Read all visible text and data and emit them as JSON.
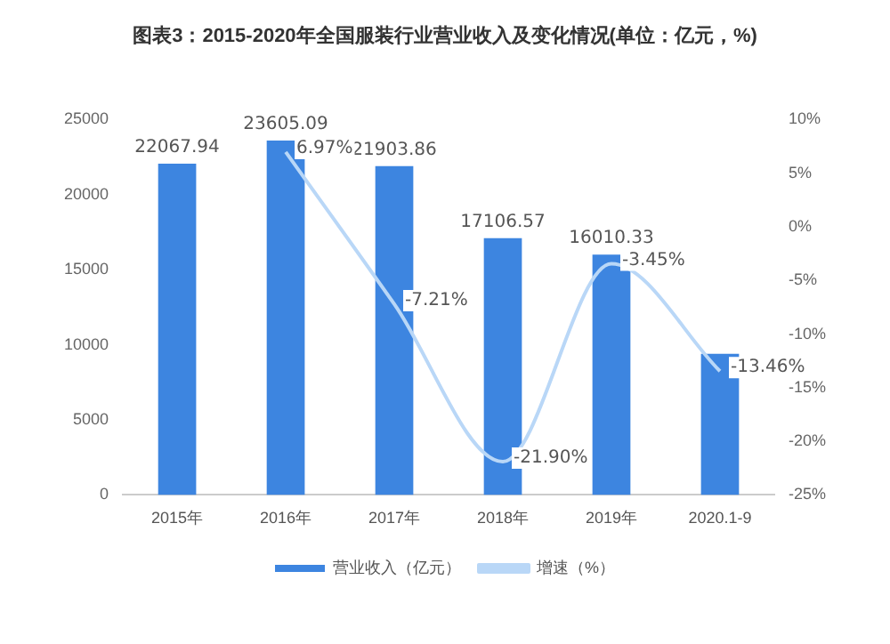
{
  "chart_data": {
    "type": "bar",
    "title": "图表3：2015-2020年全国服装行业营业收入及变化情况(单位：亿元，%)",
    "categories": [
      "2015年",
      "2016年",
      "2017年",
      "2018年",
      "2019年",
      "2020.1-9"
    ],
    "series": [
      {
        "name": "营业收入（亿元）",
        "color": "#3d85e0",
        "values": [
          22067.94,
          23605.09,
          21903.86,
          17106.57,
          16010.33,
          9400
        ],
        "value_labels": [
          "22067.94",
          "23605.09",
          "21903.86",
          "17106.57",
          "16010.33",
          null
        ]
      },
      {
        "name": "增速（%）",
        "type": "line",
        "axis": "y2",
        "color": "#b9d7f7",
        "values": [
          null,
          6.97,
          -7.21,
          -21.9,
          -3.45,
          -13.46
        ],
        "value_labels": [
          null,
          "6.97%",
          "-7.21%",
          "-21.90%",
          "-3.45%",
          "-13.46%"
        ]
      }
    ],
    "ylim": [
      0,
      25000
    ],
    "yticks": [
      0,
      5000,
      10000,
      15000,
      20000,
      25000
    ],
    "y2lim": [
      -25,
      10
    ],
    "y2ticks": [
      {
        "value": -25,
        "label": "-25%"
      },
      {
        "value": -20,
        "label": "-20%"
      },
      {
        "value": -15,
        "label": "-15%"
      },
      {
        "value": -10,
        "label": "-10%"
      },
      {
        "value": -5,
        "label": "-5%"
      },
      {
        "value": 0,
        "label": "0%"
      },
      {
        "value": 5,
        "label": "5%"
      },
      {
        "value": 10,
        "label": "10%"
      }
    ],
    "grid": false,
    "legend": "bottom",
    "marker": "none",
    "line_style": "solid"
  }
}
